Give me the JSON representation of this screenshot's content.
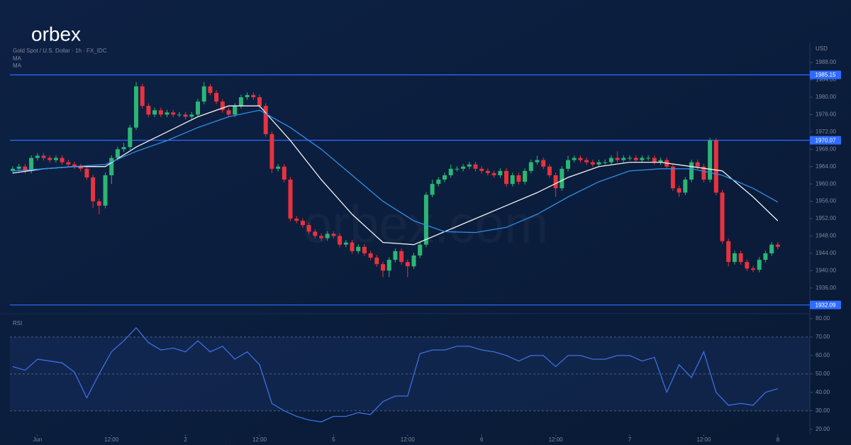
{
  "logo": "orbex",
  "watermark": "orbex.com",
  "chart_data": {
    "type": "candlestick",
    "title": "Gold Spot / U.S. Dollar · 1h · FX_IDC",
    "currency": "USD",
    "up_color": "#2bb673",
    "down_color": "#e8323f",
    "open": [
      1963,
      1963.5,
      1964,
      1963,
      1966,
      1966.5,
      1966,
      1965.5,
      1966,
      1965,
      1964.5,
      1964,
      1963.5,
      1961.5,
      1956,
      1955,
      1962,
      1966,
      1968,
      1968.5,
      1973,
      1982.5,
      1978,
      1976,
      1977,
      1976,
      1976.5,
      1976,
      1976,
      1975.5,
      1976,
      1979,
      1982.5,
      1981,
      1979,
      1977,
      1976,
      1978,
      1980,
      1980.5,
      1980,
      1978,
      1971.5,
      1963.5,
      1964,
      1961,
      1952,
      1951.5,
      1950.5,
      1949,
      1948,
      1947.5,
      1948.5,
      1948,
      1946,
      1946.5,
      1944.5,
      1945.5,
      1944,
      1943,
      1941.5,
      1940,
      1942.5,
      1944.5,
      1942,
      1941,
      1943.5,
      1946,
      1957.5,
      1960,
      1961,
      1962,
      1963.5,
      1963.5,
      1964,
      1964.5,
      1963.5,
      1963,
      1962.5,
      1962,
      1963,
      1960,
      1962,
      1960.5,
      1963,
      1965,
      1965.5,
      1964,
      1962,
      1959,
      1963.5,
      1965.5,
      1966,
      1965.5,
      1965,
      1964.5,
      1965,
      1965,
      1966,
      1965.5,
      1966,
      1966,
      1965.5,
      1966,
      1966,
      1965,
      1965.5,
      1964,
      1959,
      1958,
      1961,
      1965,
      1964,
      1961,
      1970,
      1958,
      1946.8,
      1942,
      1944,
      1942,
      1940.5,
      1940.2,
      1942.5,
      1944,
      1946
    ],
    "high": [
      1964.1,
      1964.6,
      1964.6,
      1966.6,
      1967.1,
      1967.1,
      1966.6,
      1966.6,
      1966.6,
      1965.6,
      1965.1,
      1964.6,
      1964.1,
      1962.1,
      1956.6,
      1962.6,
      1966.6,
      1968.6,
      1969.5,
      1973.6,
      1983.5,
      1983.1,
      1978.6,
      1977.6,
      1977.6,
      1977.1,
      1977.1,
      1976.6,
      1976.6,
      1976.6,
      1979.6,
      1983.5,
      1983.1,
      1981.6,
      1979.6,
      1977.6,
      1978.6,
      1980.6,
      1981.1,
      1981.1,
      1980.6,
      1978.6,
      1972.1,
      1964.6,
      1964.6,
      1961.6,
      1952.6,
      1952.1,
      1951.1,
      1949.6,
      1948.6,
      1949.1,
      1949.1,
      1948.6,
      1947.1,
      1947.1,
      1946.1,
      1946.1,
      1944.6,
      1943.6,
      1942.1,
      1943.1,
      1945.1,
      1945.1,
      1942.6,
      1944.1,
      1946.6,
      1958.1,
      1961,
      1961.6,
      1962.6,
      1964.5,
      1964.1,
      1964.6,
      1965.1,
      1965.1,
      1964.1,
      1963.6,
      1963.1,
      1963.6,
      1963.6,
      1962.6,
      1962.6,
      1963.6,
      1965.6,
      1966.5,
      1966.1,
      1964.6,
      1962.6,
      1964.1,
      1966.5,
      1966.6,
      1966.6,
      1966.1,
      1965.6,
      1965.6,
      1965.6,
      1966.6,
      1967.5,
      1966.6,
      1966.6,
      1966.6,
      1966.6,
      1966.6,
      1966.6,
      1966.1,
      1966.1,
      1964.6,
      1959.6,
      1961.6,
      1965.6,
      1965.6,
      1964.6,
      1970.6,
      1970.6,
      1958.6,
      1947.4,
      1944.6,
      1944.6,
      1942.6,
      1941.1,
      1943.1,
      1944.6,
      1946.6,
      1946.6
    ],
    "low": [
      1962.4,
      1962.9,
      1962.4,
      1962.4,
      1965.4,
      1965.4,
      1964.9,
      1964.9,
      1964.4,
      1963.9,
      1963.4,
      1962.9,
      1960.9,
      1954.5,
      1953,
      1954.4,
      1960,
      1965.4,
      1967.4,
      1967.9,
      1972.4,
      1977.4,
      1975.4,
      1975.4,
      1975.4,
      1975.4,
      1975.4,
      1975.4,
      1974.9,
      1974.9,
      1975.4,
      1978.4,
      1980.4,
      1978.4,
      1976.4,
      1975.4,
      1975.4,
      1977.4,
      1979.4,
      1979.4,
      1977.4,
      1970.9,
      1962.5,
      1962.9,
      1960.4,
      1951.4,
      1950.9,
      1949.9,
      1948.4,
      1947.4,
      1946.9,
      1946.9,
      1947.4,
      1945.4,
      1945.4,
      1943.9,
      1943.9,
      1943.4,
      1942.4,
      1940.9,
      1938.5,
      1938.5,
      1941.9,
      1941.4,
      1938.5,
      1940.4,
      1942.9,
      1945.4,
      1956.9,
      1959.4,
      1960.4,
      1961.4,
      1962.9,
      1962.9,
      1963.4,
      1962.9,
      1962.4,
      1961.9,
      1961.4,
      1961.4,
      1959.4,
      1959.4,
      1959.9,
      1959.9,
      1962.4,
      1964.4,
      1963.4,
      1961.4,
      1957,
      1958.4,
      1962.9,
      1964.9,
      1964.9,
      1964.4,
      1963.9,
      1963.9,
      1964.4,
      1964.4,
      1964.9,
      1964.9,
      1965.4,
      1964.9,
      1964.9,
      1965.4,
      1964.4,
      1964.4,
      1963.4,
      1958.4,
      1957,
      1957.4,
      1960.4,
      1963.4,
      1960.4,
      1960.4,
      1957.4,
      1946.2,
      1941,
      1941.4,
      1941.4,
      1939.9,
      1939.6,
      1939.6,
      1941.9,
      1943.4,
      1944.9
    ],
    "close": [
      1963.5,
      1964,
      1963,
      1966,
      1966.5,
      1966,
      1965.5,
      1966,
      1965,
      1964.5,
      1964,
      1963.5,
      1961.5,
      1956,
      1955,
      1962,
      1966,
      1968,
      1968.5,
      1973,
      1982.5,
      1978,
      1976,
      1977,
      1976,
      1976.5,
      1976,
      1976,
      1975.5,
      1976,
      1979,
      1982.5,
      1981,
      1979,
      1977,
      1976,
      1978,
      1980,
      1980.5,
      1980,
      1978,
      1971.5,
      1963.5,
      1964,
      1961,
      1952,
      1951.5,
      1950.5,
      1949,
      1948,
      1947.5,
      1948.5,
      1948,
      1946,
      1946.5,
      1944.5,
      1945.5,
      1944,
      1943,
      1941.5,
      1940,
      1942.5,
      1944.5,
      1942,
      1941,
      1943.5,
      1946,
      1957.5,
      1960,
      1961,
      1962,
      1963.5,
      1963.5,
      1964,
      1964.5,
      1963.5,
      1963,
      1962.5,
      1962,
      1963,
      1960,
      1962,
      1960.5,
      1963,
      1965,
      1965.5,
      1964,
      1962,
      1959,
      1963.5,
      1965.5,
      1966,
      1965.5,
      1965,
      1964.5,
      1965,
      1965,
      1966,
      1965.5,
      1966,
      1966,
      1965.5,
      1966,
      1966,
      1965,
      1965.5,
      1964,
      1959,
      1958,
      1961,
      1965,
      1964,
      1961,
      1970,
      1958,
      1946.8,
      1942,
      1944,
      1942,
      1940.5,
      1940.2,
      1942.5,
      1944,
      1946,
      1945.5
    ],
    "ylim": [
      1930.4,
      1992.6
    ],
    "yticks": [
      {
        "value": 1936,
        "label": "1936.00"
      },
      {
        "value": 1940,
        "label": "1940.00"
      },
      {
        "value": 1944,
        "label": "1944.00"
      },
      {
        "value": 1948,
        "label": "1948.00"
      },
      {
        "value": 1952,
        "label": "1952.00"
      },
      {
        "value": 1956,
        "label": "1956.00"
      },
      {
        "value": 1960,
        "label": "1960.00"
      },
      {
        "value": 1964,
        "label": "1964.00"
      },
      {
        "value": 1968,
        "label": "1968.00"
      },
      {
        "value": 1972,
        "label": "1972.00"
      },
      {
        "value": 1976,
        "label": "1976.00"
      },
      {
        "value": 1980,
        "label": "1980.00"
      },
      {
        "value": 1984,
        "label": "1984.00"
      },
      {
        "value": 1988,
        "label": "1988.00"
      }
    ],
    "price_lines": [
      {
        "value": 1985.15,
        "color": "#2f6bff"
      },
      {
        "value": 1970.07,
        "color": "#2f6bff"
      },
      {
        "value": 1932.09,
        "color": "#2f6bff"
      }
    ],
    "series": [
      {
        "name": "MA",
        "color": "#f2f2f2",
        "x": [
          0,
          5,
          10,
          15,
          20,
          25,
          30,
          35,
          40,
          45,
          50,
          55,
          60,
          65,
          70,
          75,
          80,
          85,
          90,
          95,
          100,
          105,
          110,
          115,
          120,
          124
        ],
        "values": [
          1962.5,
          1963.5,
          1964,
          1964,
          1968.5,
          1972,
          1975.5,
          1978,
          1978,
          1970,
          1961,
          1953,
          1946.5,
          1946,
          1949,
          1952,
          1955,
          1958,
          1961.5,
          1964,
          1965,
          1965,
          1964,
          1963,
          1957,
          1951.5
        ]
      },
      {
        "name": "MA",
        "color": "#2e8ee6",
        "x": [
          0,
          5,
          10,
          15,
          20,
          25,
          30,
          35,
          40,
          45,
          50,
          55,
          60,
          65,
          70,
          75,
          80,
          85,
          90,
          95,
          100,
          105,
          110,
          115,
          120,
          124
        ],
        "values": [
          1963,
          1963.5,
          1964,
          1964.5,
          1967.5,
          1970,
          1973,
          1975.5,
          1977,
          1973,
          1968,
          1962,
          1956,
          1951.5,
          1949,
          1948.8,
          1950,
          1953,
          1957,
          1960.5,
          1963,
          1963.5,
          1963.5,
          1962,
          1959,
          1955.8
        ]
      }
    ],
    "xticks": [
      {
        "value": 4,
        "label": "Jun"
      },
      {
        "value": 16,
        "label": "12:00"
      },
      {
        "value": 28,
        "label": "2"
      },
      {
        "value": 40,
        "label": "12:00"
      },
      {
        "value": 52,
        "label": "5"
      },
      {
        "value": 64,
        "label": "12:00"
      },
      {
        "value": 76,
        "label": "6"
      },
      {
        "value": 88,
        "label": "12:00"
      },
      {
        "value": 100,
        "label": "7"
      },
      {
        "value": 112,
        "label": "12:00"
      },
      {
        "value": 124,
        "label": "8"
      }
    ],
    "rsi": {
      "type": "line",
      "name": "RSI",
      "color": "#3a6fe0",
      "x": [
        0,
        2,
        4,
        6,
        8,
        10,
        12,
        14,
        16,
        18,
        20,
        22,
        24,
        26,
        28,
        30,
        32,
        34,
        36,
        38,
        40,
        42,
        44,
        46,
        48,
        50,
        52,
        54,
        56,
        58,
        60,
        62,
        64,
        66,
        68,
        70,
        72,
        74,
        76,
        78,
        80,
        82,
        84,
        86,
        88,
        90,
        92,
        94,
        96,
        98,
        100,
        102,
        104,
        106,
        108,
        110,
        112,
        114,
        116,
        118,
        120,
        122,
        124
      ],
      "values": [
        54,
        52,
        58,
        57,
        56,
        51,
        37,
        50,
        62,
        68,
        75,
        67,
        63,
        64,
        62,
        68,
        62,
        65,
        58,
        62,
        55,
        34,
        30,
        27,
        25,
        24,
        27,
        27,
        29,
        28,
        35,
        38,
        38,
        61,
        63,
        63,
        65,
        65,
        63,
        62,
        60,
        57,
        60,
        60,
        54,
        60,
        60,
        58,
        58,
        60,
        60,
        57,
        59,
        40,
        55,
        48,
        62,
        40,
        33,
        34,
        33,
        40,
        42
      ],
      "ylim": [
        18,
        81.5
      ],
      "yticks": [
        {
          "value": 20,
          "label": "20.00"
        },
        {
          "value": 30,
          "label": "30.00"
        },
        {
          "value": 40,
          "label": "40.00"
        },
        {
          "value": 50,
          "label": "50.00"
        },
        {
          "value": 60,
          "label": "60.00"
        },
        {
          "value": 70,
          "label": "70.00"
        },
        {
          "value": 80,
          "label": "80.00"
        }
      ],
      "levels": [
        30,
        50,
        70
      ]
    }
  }
}
